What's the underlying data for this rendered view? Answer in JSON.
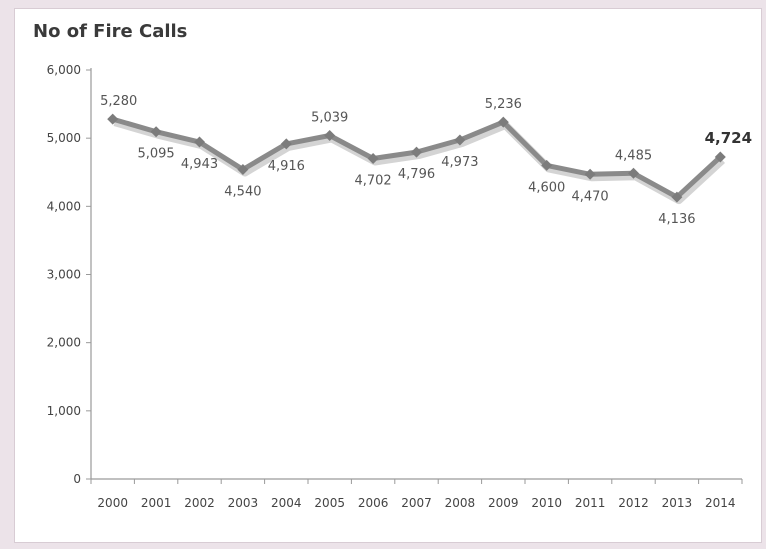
{
  "chart_data": {
    "type": "line",
    "title": "No of Fire Calls",
    "xlabel": "",
    "ylabel": "",
    "categories": [
      "2000",
      "2001",
      "2002",
      "2003",
      "2004",
      "2005",
      "2006",
      "2007",
      "2008",
      "2009",
      "2010",
      "2011",
      "2012",
      "2013",
      "2014"
    ],
    "series": [
      {
        "values": [
          5280,
          5095,
          4943,
          4540,
          4916,
          5039,
          4702,
          4796,
          4973,
          5236,
          4600,
          4470,
          4485,
          4136,
          4724
        ]
      }
    ],
    "data_labels": [
      "5,280",
      "5,095",
      "4,943",
      "4,540",
      "4,916",
      "5,039",
      "4,702",
      "4,796",
      "4,973",
      "5,236",
      "4,600",
      "4,470",
      "4,485",
      "4,136",
      "4,724"
    ],
    "ylim": [
      0,
      6000
    ],
    "yticks": [
      0,
      1000,
      2000,
      3000,
      4000,
      5000,
      6000
    ],
    "ytick_labels": [
      "0",
      "1,000",
      "2,000",
      "3,000",
      "4,000",
      "5,000",
      "6,000"
    ],
    "highlight_last_label": true,
    "grid": false,
    "line_color": "#8a8a8a"
  }
}
